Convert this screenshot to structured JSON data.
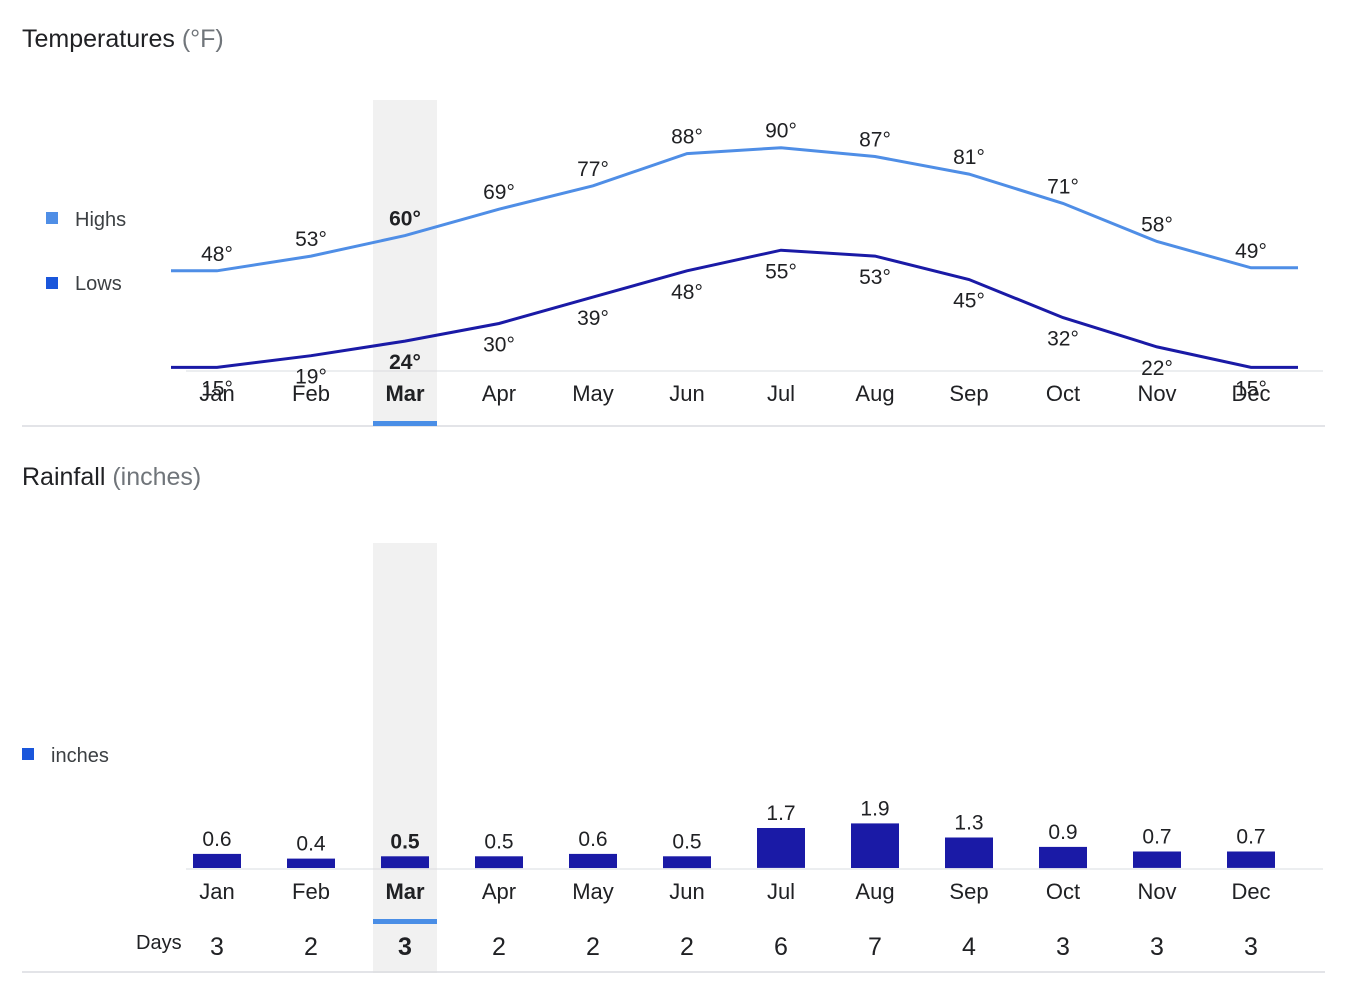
{
  "temperature": {
    "title": "Temperatures",
    "unit": "(°F)",
    "selected_month": "Mar",
    "legend": {
      "highs": "Highs",
      "lows": "Lows"
    },
    "colors": {
      "highs": "#4f8ee6",
      "lows": "#1a1aa6",
      "selected_band": "#f1f1f1",
      "selected_marker": "#4a8ee6"
    }
  },
  "rainfall": {
    "title": "Rainfall",
    "unit": "(inches)",
    "legend": {
      "inches": "inches"
    },
    "days_label": "Days",
    "colors": {
      "bars": "#1a1aa6",
      "legend": "#1a56db"
    }
  },
  "chart_data": [
    {
      "type": "line",
      "title": "Temperatures (°F)",
      "categories": [
        "Jan",
        "Feb",
        "Mar",
        "Apr",
        "May",
        "Jun",
        "Jul",
        "Aug",
        "Sep",
        "Oct",
        "Nov",
        "Dec"
      ],
      "series": [
        {
          "name": "Highs",
          "values": [
            48,
            53,
            60,
            69,
            77,
            88,
            90,
            87,
            81,
            71,
            58,
            49
          ],
          "labels": [
            "48°",
            "53°",
            "60°",
            "69°",
            "77°",
            "88°",
            "90°",
            "87°",
            "81°",
            "71°",
            "58°",
            "49°"
          ]
        },
        {
          "name": "Lows",
          "values": [
            15,
            19,
            24,
            30,
            39,
            48,
            55,
            53,
            45,
            32,
            22,
            15
          ],
          "labels": [
            "15°",
            "19°",
            "24°",
            "30°",
            "39°",
            "48°",
            "55°",
            "53°",
            "45°",
            "32°",
            "22°",
            "15°"
          ]
        }
      ],
      "ylim": [
        10,
        95
      ],
      "legend": "left",
      "grid": false
    },
    {
      "type": "bar",
      "title": "Rainfall (inches)",
      "categories": [
        "Jan",
        "Feb",
        "Mar",
        "Apr",
        "May",
        "Jun",
        "Jul",
        "Aug",
        "Sep",
        "Oct",
        "Nov",
        "Dec"
      ],
      "series": [
        {
          "name": "inches",
          "values": [
            0.6,
            0.4,
            0.5,
            0.5,
            0.6,
            0.5,
            1.7,
            1.9,
            1.3,
            0.9,
            0.7,
            0.7
          ],
          "labels": [
            "0.6",
            "0.4",
            "0.5",
            "0.5",
            "0.6",
            "0.5",
            "1.7",
            "1.9",
            "1.3",
            "0.9",
            "0.7",
            "0.7"
          ]
        }
      ],
      "days": [
        "3",
        "2",
        "3",
        "2",
        "2",
        "2",
        "6",
        "7",
        "4",
        "3",
        "3",
        "3"
      ],
      "ylim": [
        0,
        2
      ],
      "legend": "left",
      "grid": false
    }
  ]
}
